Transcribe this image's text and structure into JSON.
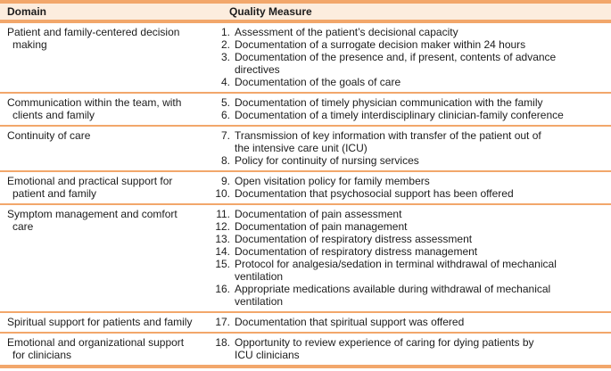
{
  "theme": {
    "accent": "#F2A76B",
    "header_bg": "#FCEDDE",
    "text": "#1C1C1C"
  },
  "table": {
    "headers": [
      "Domain",
      "Quality Measure"
    ],
    "rows": [
      {
        "domain": "Patient and family-centered decision\nmaking",
        "measures": [
          {
            "num": "1.",
            "text": "Assessment of the patient’s decisional capacity"
          },
          {
            "num": "2.",
            "text": "Documentation of a surrogate decision maker within 24 hours"
          },
          {
            "num": "3.",
            "text": "Documentation of the presence and, if present, contents of advance\ndirectives"
          },
          {
            "num": "4.",
            "text": "Documentation of the goals of care"
          }
        ]
      },
      {
        "domain": "Communication within the team, with\nclients and family",
        "measures": [
          {
            "num": "5.",
            "text": "Documentation of timely physician communication with the family"
          },
          {
            "num": "6.",
            "text": "Documentation of a timely interdisciplinary clinician-family conference"
          }
        ]
      },
      {
        "domain": "Continuity of care",
        "measures": [
          {
            "num": "7.",
            "text": "Transmission of key information with transfer of the patient out of\nthe intensive care unit (ICU)"
          },
          {
            "num": "8.",
            "text": "Policy for continuity of nursing services"
          }
        ]
      },
      {
        "domain": "Emotional and practical support for\npatient and family",
        "measures": [
          {
            "num": "9.",
            "text": "Open visitation policy for family members"
          },
          {
            "num": "10.",
            "text": "Documentation that psychosocial support has been offered"
          }
        ]
      },
      {
        "domain": "Symptom management and comfort\ncare",
        "measures": [
          {
            "num": "11.",
            "text": "Documentation of pain assessment"
          },
          {
            "num": "12.",
            "text": "Documentation of pain management"
          },
          {
            "num": "13.",
            "text": "Documentation of respiratory distress assessment"
          },
          {
            "num": "14.",
            "text": "Documentation of respiratory distress management"
          },
          {
            "num": "15.",
            "text": "Protocol for analgesia/sedation in terminal withdrawal of mechanical\nventilation"
          },
          {
            "num": "16.",
            "text": "Appropriate medications available during withdrawal of mechanical\nventilation"
          }
        ]
      },
      {
        "domain": "Spiritual support for patients and family",
        "measures": [
          {
            "num": "17.",
            "text": "Documentation that spiritual support was offered"
          }
        ]
      },
      {
        "domain": "Emotional and organizational support\nfor clinicians",
        "measures": [
          {
            "num": "18.",
            "text": "Opportunity to review experience of caring for dying patients by\nICU clinicians"
          }
        ]
      }
    ]
  }
}
